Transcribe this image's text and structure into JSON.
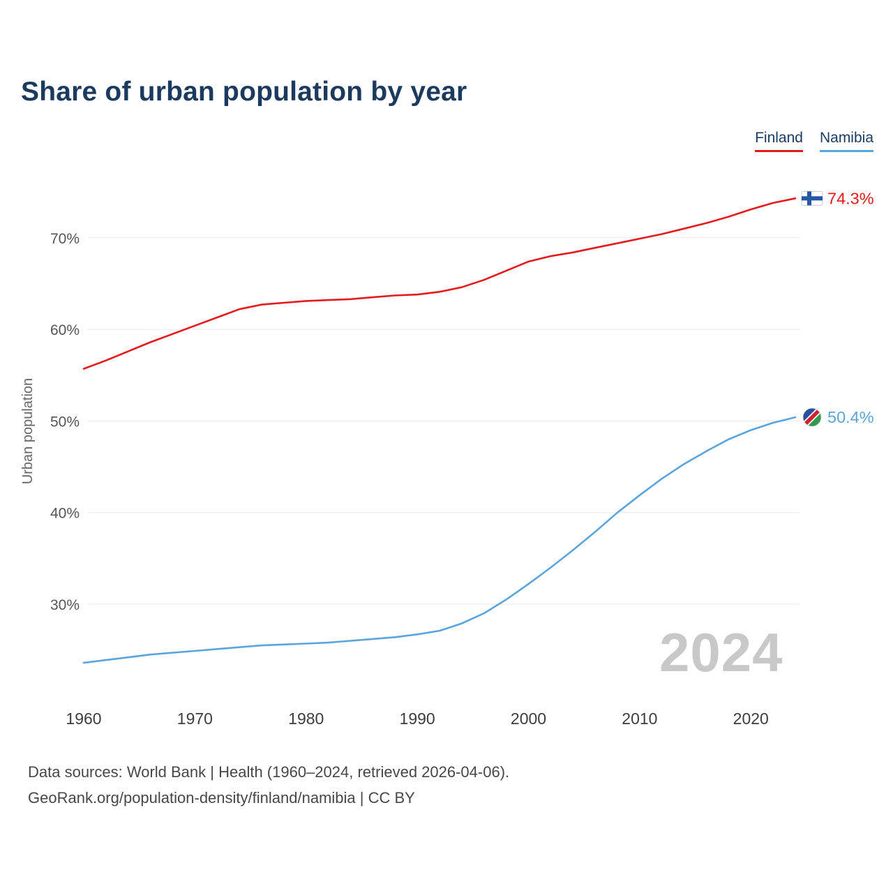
{
  "title": "Share of urban population by year",
  "legend": [
    {
      "label": "Finland",
      "color": "#e41a1c"
    },
    {
      "label": "Namibia",
      "color": "#5ba4dc"
    }
  ],
  "watermark": "2024",
  "footer": {
    "line1": "Data sources: World Bank | Health (1960–2024, retrieved 2026-04-06).",
    "line2": "GeoRank.org/population-density/finland/namibia | CC BY"
  },
  "chart_data": {
    "type": "line",
    "title": "Share of urban population by year",
    "xlabel": "",
    "ylabel": "Urban population",
    "grid": true,
    "legend_position": "top-right",
    "xlim": [
      1960,
      2024
    ],
    "ylim": [
      22,
      76
    ],
    "xticks": [
      1960,
      1970,
      1980,
      1990,
      2000,
      2010,
      2020
    ],
    "yticks": [
      30,
      40,
      50,
      60,
      70
    ],
    "ytick_suffix": "%",
    "x": [
      1960,
      1962,
      1964,
      1966,
      1968,
      1970,
      1972,
      1974,
      1976,
      1978,
      1980,
      1982,
      1984,
      1986,
      1988,
      1990,
      1992,
      1994,
      1996,
      1998,
      2000,
      2002,
      2004,
      2006,
      2008,
      2010,
      2012,
      2014,
      2016,
      2018,
      2020,
      2022,
      2024
    ],
    "series": [
      {
        "name": "Finland",
        "color": "#e41a1c",
        "icon": "finland-flag-icon",
        "end_label": "74.3%",
        "values": [
          55.7,
          56.6,
          57.6,
          58.6,
          59.5,
          60.4,
          61.3,
          62.2,
          62.7,
          62.9,
          63.1,
          63.2,
          63.3,
          63.5,
          63.7,
          63.8,
          64.1,
          64.6,
          65.4,
          66.4,
          67.4,
          68.0,
          68.4,
          68.9,
          69.4,
          69.9,
          70.4,
          71.0,
          71.6,
          72.3,
          73.1,
          73.8,
          74.3
        ]
      },
      {
        "name": "Namibia",
        "color": "#5ba4dc",
        "icon": "namibia-flag-icon",
        "end_label": "50.4%",
        "values": [
          23.6,
          23.9,
          24.2,
          24.5,
          24.7,
          24.9,
          25.1,
          25.3,
          25.5,
          25.6,
          25.7,
          25.8,
          26.0,
          26.2,
          26.4,
          26.7,
          27.1,
          27.9,
          29.0,
          30.5,
          32.2,
          34.0,
          35.9,
          37.9,
          40.0,
          41.9,
          43.7,
          45.3,
          46.7,
          48.0,
          49.0,
          49.8,
          50.4
        ]
      }
    ]
  }
}
